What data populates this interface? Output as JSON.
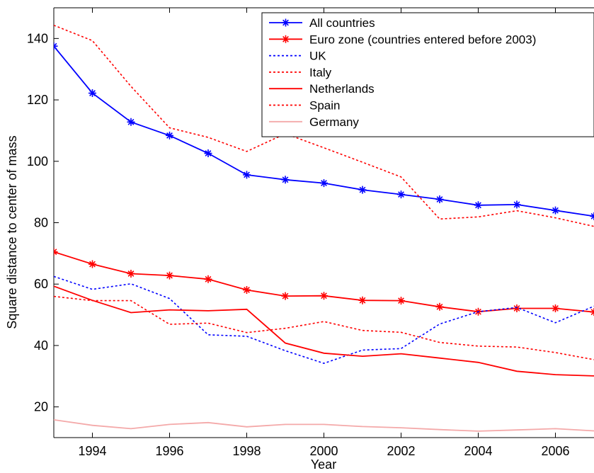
{
  "chart_data": {
    "type": "line",
    "xlabel": "Year",
    "ylabel": "Square distance to center of mass",
    "xlim": [
      1993,
      2007
    ],
    "ylim": [
      10,
      150
    ],
    "xticks": [
      1994,
      1996,
      1998,
      2000,
      2002,
      2004,
      2006
    ],
    "yticks": [
      20,
      40,
      60,
      80,
      100,
      120,
      140
    ],
    "grid": false,
    "legend_position": "top-right",
    "x": [
      1993,
      1994,
      1995,
      1996,
      1997,
      1998,
      1999,
      2000,
      2001,
      2002,
      2003,
      2004,
      2005,
      2006,
      2007
    ],
    "series": [
      {
        "name": "All countries",
        "color": "#0000ff",
        "line": "solid",
        "marker": "asterisk",
        "values": [
          137.5,
          122.2,
          112.8,
          108.4,
          102.6,
          95.6,
          94.0,
          92.9,
          90.7,
          89.2,
          87.6,
          85.7,
          85.9,
          84.0,
          82.1
        ]
      },
      {
        "name": "Euro zone (countries entered before 2003)",
        "color": "#ff0000",
        "line": "solid",
        "marker": "asterisk",
        "values": [
          70.5,
          66.5,
          63.4,
          62.8,
          61.6,
          58.1,
          56.1,
          56.2,
          54.7,
          54.6,
          52.6,
          51.0,
          52.1,
          52.1,
          50.9
        ]
      },
      {
        "name": "UK",
        "color": "#0000ff",
        "line": "dotted",
        "marker": "none",
        "values": [
          62.5,
          58.3,
          60.1,
          55.3,
          43.5,
          43.0,
          38.3,
          34.2,
          38.5,
          39.0,
          47.0,
          51.0,
          52.4,
          47.4,
          52.8
        ]
      },
      {
        "name": "Italy",
        "color": "#ff0000",
        "line": "dotted",
        "marker": "none",
        "values": [
          56.0,
          54.6,
          54.6,
          46.9,
          47.3,
          44.2,
          45.6,
          47.8,
          44.9,
          44.3,
          41.0,
          39.8,
          39.5,
          37.7,
          35.4
        ]
      },
      {
        "name": "Netherlands",
        "color": "#ff0000",
        "line": "solid",
        "marker": "none",
        "values": [
          59.3,
          54.7,
          50.7,
          51.6,
          51.3,
          51.8,
          40.8,
          37.5,
          36.5,
          37.3,
          35.9,
          34.5,
          31.6,
          30.5,
          30.1
        ]
      },
      {
        "name": "Spain",
        "color": "#ff0000",
        "line": "dotted",
        "marker": "none",
        "values": [
          144.3,
          139.3,
          124.4,
          110.9,
          107.8,
          103.2,
          109.0,
          104.4,
          99.7,
          94.9,
          81.2,
          81.9,
          83.9,
          81.6,
          78.8
        ]
      },
      {
        "name": "Germany",
        "color": "#f4a9a9",
        "line": "solid",
        "marker": "none",
        "values": [
          15.8,
          14.0,
          12.9,
          14.3,
          14.9,
          13.5,
          14.3,
          14.3,
          13.6,
          13.2,
          12.6,
          12.1,
          12.5,
          12.9,
          12.2
        ]
      }
    ]
  }
}
